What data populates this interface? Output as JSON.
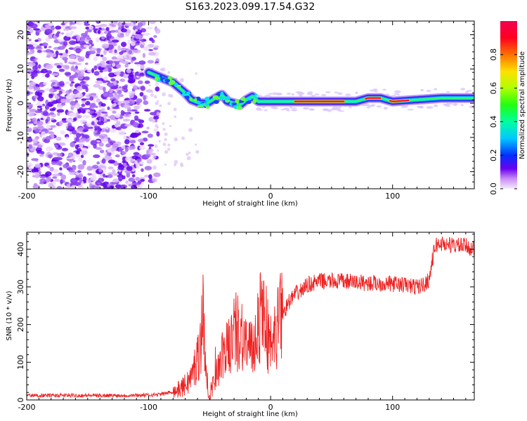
{
  "title": "S163.2023.099.17.54.G32",
  "chart_data": [
    {
      "type": "heatmap",
      "xlabel": "Height of straight line (km)",
      "ylabel": "Frequency (Hz)",
      "xlim": [
        -200,
        167
      ],
      "ylim": [
        -25,
        24
      ],
      "x_ticks": [
        -200,
        -100,
        0,
        100
      ],
      "y_ticks": [
        -20,
        -10,
        0,
        10,
        20
      ],
      "colorbar": {
        "label": "Normalized spectral amplitude",
        "range": [
          0,
          1
        ],
        "ticks": [
          0.0,
          0.2,
          0.4,
          0.6,
          0.8
        ]
      },
      "ridge": {
        "x": [
          -100,
          -90,
          -80,
          -70,
          -65,
          -58,
          -52,
          -45,
          -40,
          -35,
          -30,
          -25,
          -20,
          -15,
          -10,
          -5,
          0,
          20,
          40,
          60,
          70,
          80,
          90,
          100,
          120,
          140,
          167
        ],
        "y": [
          9,
          7.5,
          6,
          3,
          1,
          0,
          0,
          1.5,
          2.5,
          0.5,
          0,
          -0.5,
          1,
          2,
          0.5,
          0.5,
          0.5,
          0.5,
          0.5,
          0.5,
          0.5,
          1.5,
          1.5,
          0.5,
          1,
          1.5,
          1.5
        ]
      }
    },
    {
      "type": "line",
      "xlabel": "Height of straight line (km)",
      "ylabel": "SNR (10 * v/v)",
      "xlim": [
        -200,
        167
      ],
      "ylim": [
        0,
        445
      ],
      "x_ticks": [
        -200,
        -100,
        0,
        100
      ],
      "y_ticks": [
        0,
        100,
        200,
        300,
        400
      ],
      "color": "#ee2222",
      "x": [
        -200,
        -180,
        -160,
        -140,
        -120,
        -100,
        -90,
        -80,
        -75,
        -70,
        -65,
        -60,
        -57,
        -55,
        -53,
        -50,
        -45,
        -40,
        -35,
        -30,
        -25,
        -20,
        -15,
        -10,
        -5,
        0,
        5,
        10,
        15,
        20,
        25,
        30,
        40,
        60,
        80,
        100,
        110,
        120,
        125,
        130,
        132,
        135,
        140,
        150,
        160,
        167
      ],
      "y": [
        12,
        12,
        12,
        12,
        12,
        13,
        15,
        22,
        28,
        40,
        60,
        110,
        170,
        245,
        60,
        15,
        60,
        110,
        140,
        175,
        190,
        150,
        125,
        210,
        240,
        110,
        190,
        230,
        260,
        280,
        290,
        305,
        315,
        315,
        310,
        308,
        305,
        300,
        305,
        320,
        360,
        410,
        415,
        410,
        408,
        400
      ]
    }
  ]
}
